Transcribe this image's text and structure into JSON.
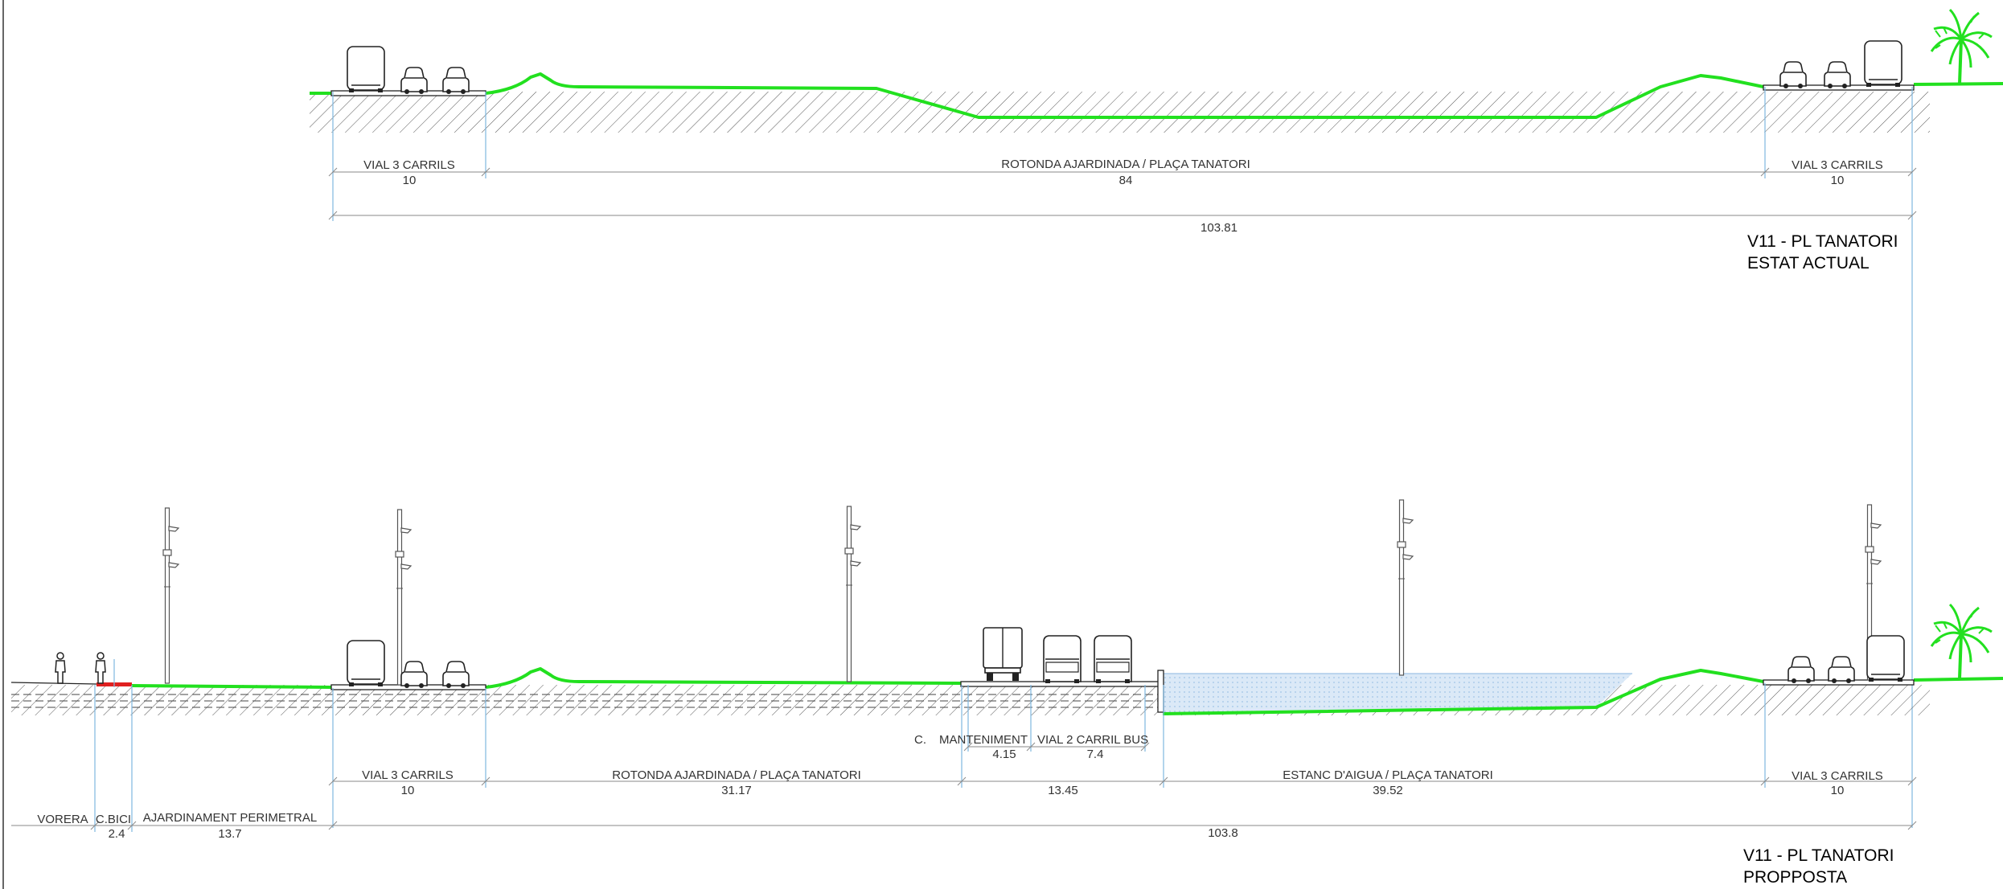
{
  "sections": [
    {
      "title_line1": "V11 - PL TANATORI",
      "title_line2": "ESTAT ACTUAL",
      "dimensions": [
        {
          "label": "VIAL 3 CARRILS",
          "value": "10"
        },
        {
          "label": "ROTONDA AJARDINADA / PLAÇA TANATORI",
          "value": "84"
        },
        {
          "label": "VIAL 3 CARRILS",
          "value": "10"
        }
      ],
      "total": "103.81"
    },
    {
      "title_line1": "V11 - PL TANATORI",
      "title_line2": "PROPPOSTA",
      "dimensions": [
        {
          "label": "VORERA",
          "value": ""
        },
        {
          "label": "C.BICI",
          "value": "2.4"
        },
        {
          "label": "AJARDINAMENT PERIMETRAL",
          "value": "13.7"
        },
        {
          "label": "VIAL 3 CARRILS",
          "value": "10"
        },
        {
          "label": "ROTONDA AJARDINADA / PLAÇA TANATORI",
          "value": "31.17"
        },
        {
          "label": "",
          "value": "13.45"
        },
        {
          "label": "ESTANC D'AIGUA / PLAÇA TANATORI",
          "value": "39.52"
        },
        {
          "label": "VIAL 3 CARRILS",
          "value": "10"
        }
      ],
      "sub_dimensions": [
        {
          "label": "C.",
          "value": ""
        },
        {
          "label": "MANTENIMENT",
          "value": "4.15"
        },
        {
          "label": "VIAL 2 CARRIL BUS",
          "value": "7.4"
        }
      ],
      "total": "103.8"
    }
  ],
  "colors": {
    "grass": "#22e01f",
    "water": "#dbe9f7",
    "bike_lane": "#e02020",
    "reference_lines": "#7fb8e0"
  }
}
